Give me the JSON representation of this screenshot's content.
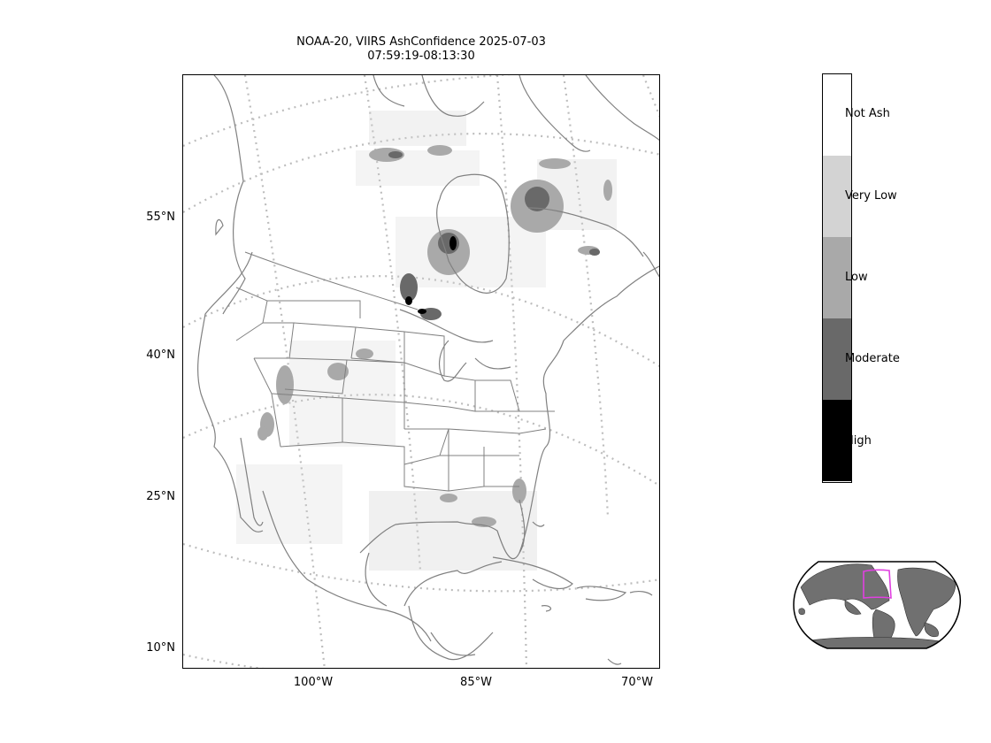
{
  "title": {
    "line1": "NOAA-20, VIIRS AshConfidence 2025-07-03",
    "line2": "07:59:19-08:13:30"
  },
  "axes": {
    "lat_labels": [
      "55°N",
      "40°N",
      "25°N",
      "10°N"
    ],
    "lon_labels": [
      "100°W",
      "85°W",
      "70°W"
    ]
  },
  "colorbar": {
    "categories": [
      {
        "label": "Not Ash",
        "color": "#ffffff"
      },
      {
        "label": "Very Low",
        "color": "#d3d3d3"
      },
      {
        "label": "Low",
        "color": "#a9a9a9"
      },
      {
        "label": "Moderate",
        "color": "#696969"
      },
      {
        "label": "High",
        "color": "#000000"
      }
    ]
  },
  "colors": {
    "coastline": "#808080",
    "gridline": "#bdbdbd",
    "inset_land": "#707070",
    "inset_box": "#e040e0"
  }
}
